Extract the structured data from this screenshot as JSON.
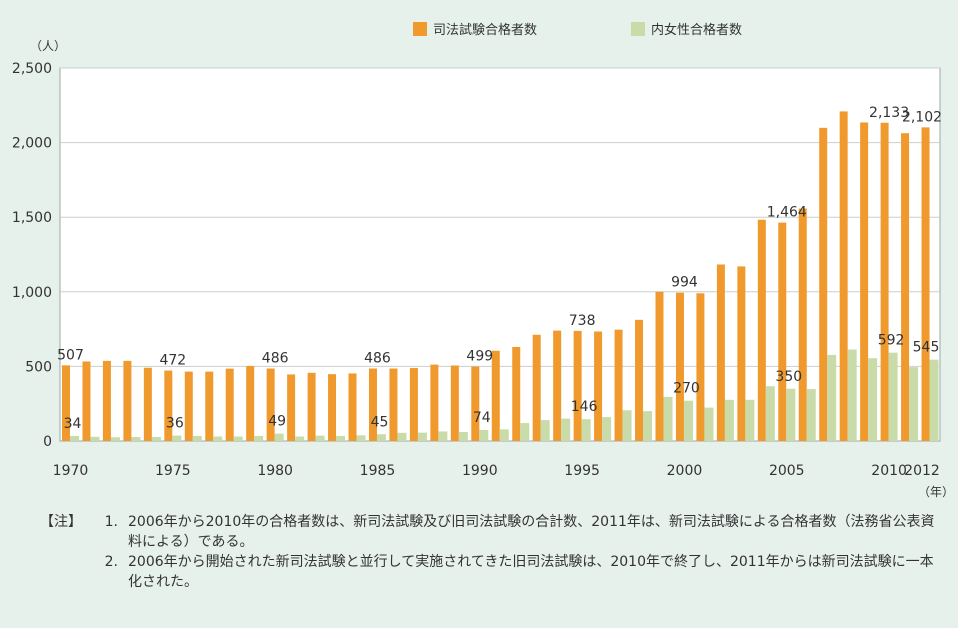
{
  "chart_data": {
    "type": "bar",
    "y_unit": "（人）",
    "x_unit": "（年）",
    "ylim": [
      0,
      2500
    ],
    "yticks": [
      0,
      500,
      1000,
      1500,
      2000,
      2500
    ],
    "ytick_labels": [
      "0",
      "500",
      "1,000",
      "1,500",
      "2,000",
      "2,500"
    ],
    "grid": true,
    "legend_position": "top",
    "categories": [
      1970,
      1971,
      1972,
      1973,
      1974,
      1975,
      1976,
      1977,
      1978,
      1979,
      1980,
      1981,
      1982,
      1983,
      1984,
      1985,
      1986,
      1987,
      1988,
      1989,
      1990,
      1991,
      1992,
      1993,
      1994,
      1995,
      1996,
      1997,
      1998,
      1999,
      2000,
      2001,
      2002,
      2003,
      2004,
      2005,
      2006,
      2007,
      2008,
      2009,
      2010,
      2011,
      2012
    ],
    "xtick_labels": [
      "1970",
      "1975",
      "1980",
      "1985",
      "1990",
      "1995",
      "2000",
      "2005",
      "2010",
      "2012"
    ],
    "series": [
      {
        "name": "司法試験合格者数",
        "color": "#f09a2e",
        "values": [
          507,
          533,
          537,
          537,
          491,
          472,
          465,
          465,
          485,
          503,
          486,
          446,
          457,
          448,
          453,
          486,
          486,
          489,
          512,
          506,
          499,
          605,
          630,
          712,
          740,
          738,
          734,
          746,
          812,
          1000,
          994,
          990,
          1183,
          1170,
          1483,
          1464,
          1558,
          2099,
          2209,
          2135,
          2133,
          2063,
          2102
        ]
      },
      {
        "name": "内女性合格者数",
        "color": "#c8dba9",
        "values": [
          34,
          28,
          25,
          27,
          27,
          36,
          34,
          30,
          30,
          34,
          49,
          30,
          36,
          34,
          38,
          45,
          55,
          56,
          64,
          60,
          74,
          78,
          120,
          140,
          150,
          146,
          160,
          206,
          200,
          296,
          270,
          224,
          276,
          276,
          367,
          350,
          348,
          577,
          613,
          555,
          592,
          495,
          545
        ]
      }
    ],
    "annotations": {
      "total": [
        {
          "year": 1970,
          "text": "507"
        },
        {
          "year": 1975,
          "text": "472"
        },
        {
          "year": 1980,
          "text": "486"
        },
        {
          "year": 1985,
          "text": "486"
        },
        {
          "year": 1990,
          "text": "499"
        },
        {
          "year": 1995,
          "text": "738"
        },
        {
          "year": 2000,
          "text": "994"
        },
        {
          "year": 2005,
          "text": "1,464"
        },
        {
          "year": 2010,
          "text": "2,133"
        },
        {
          "year": 2012,
          "text": "2,102"
        }
      ],
      "women": [
        {
          "year": 1970,
          "text": "34"
        },
        {
          "year": 1975,
          "text": "36"
        },
        {
          "year": 1980,
          "text": "49"
        },
        {
          "year": 1985,
          "text": "45"
        },
        {
          "year": 1990,
          "text": "74"
        },
        {
          "year": 1995,
          "text": "146"
        },
        {
          "year": 2000,
          "text": "270"
        },
        {
          "year": 2005,
          "text": "350"
        },
        {
          "year": 2010,
          "text": "592"
        },
        {
          "year": 2012,
          "text": "545"
        }
      ]
    }
  },
  "notes": {
    "tag": "【注】",
    "items": [
      {
        "num": "1.",
        "text": "2006年から2010年の合格者数は、新司法試験及び旧司法試験の合計数、2011年は、新司法試験による合格者数（法務省公表資料による）である。"
      },
      {
        "num": "2.",
        "text": "2006年から開始された新司法試験と並行して実施されてきた旧司法試験は、2010年で終了し、2011年からは新司法試験に一本化された。"
      }
    ]
  }
}
